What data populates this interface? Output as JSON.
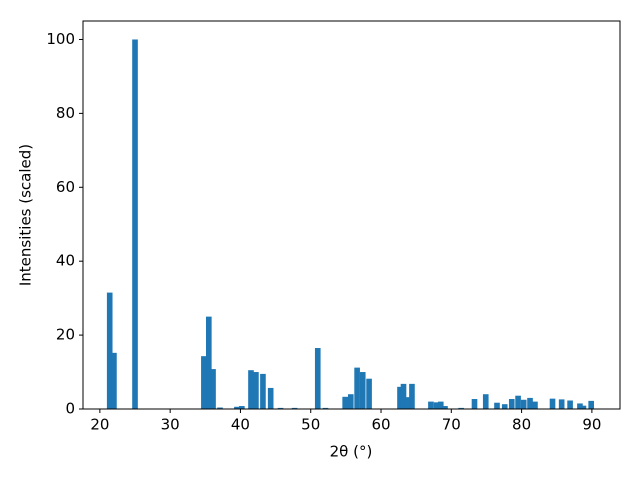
{
  "chart_data": {
    "type": "bar",
    "xlabel": "2θ (°)",
    "ylabel": "Intensities (scaled)",
    "x": [
      21.4,
      22.0,
      25.0,
      34.8,
      35.5,
      36.1,
      37.1,
      39.5,
      40.2,
      41.5,
      42.2,
      43.2,
      44.3,
      45.7,
      47.7,
      51.0,
      52.1,
      54.9,
      55.7,
      56.6,
      57.4,
      58.3,
      62.7,
      63.2,
      63.8,
      64.4,
      67.1,
      67.9,
      68.5,
      69.1,
      71.4,
      73.3,
      74.9,
      76.5,
      77.6,
      78.6,
      79.5,
      80.3,
      81.2,
      81.9,
      84.4,
      85.7,
      86.9,
      88.3,
      88.8,
      89.9
    ],
    "values": [
      31.5,
      15.2,
      100,
      14.3,
      25,
      10.8,
      0.4,
      0.6,
      0.8,
      10.5,
      10,
      9.5,
      5.7,
      0.3,
      0.3,
      16.5,
      0.3,
      3.3,
      4,
      11.2,
      10,
      8.2,
      6,
      6.8,
      3.2,
      6.8,
      2,
      1.8,
      2,
      0.8,
      0.3,
      2.7,
      4,
      1.7,
      1.3,
      2.7,
      3.6,
      2.5,
      3,
      2,
      2.8,
      2.6,
      2.3,
      1.5,
      0.9,
      2.2
    ],
    "bar_width": 0.8,
    "color": "#1f77b4",
    "xlim": [
      17.6,
      94
    ],
    "xticks": [
      20,
      30,
      40,
      50,
      60,
      70,
      80,
      90
    ],
    "ylim": [
      0,
      105
    ],
    "yticks": [
      0,
      20,
      40,
      60,
      80,
      100
    ],
    "grid": false
  }
}
